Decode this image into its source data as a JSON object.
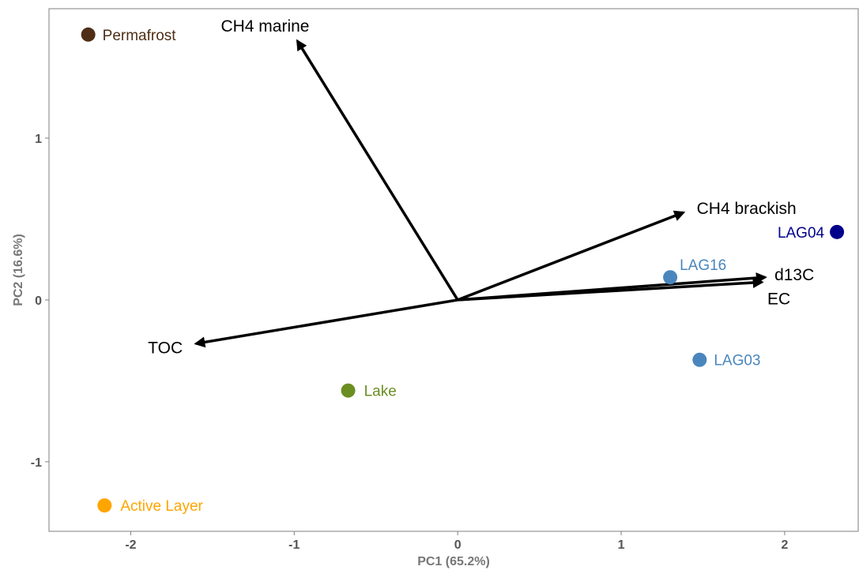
{
  "chart_data": {
    "type": "scatter",
    "title": "",
    "xlabel": "PC1 (65.2%)",
    "ylabel": "PC2 (16.6%)",
    "xlim": [
      -2.5,
      2.45
    ],
    "ylim": [
      -1.43,
      1.8
    ],
    "xticks": [
      -2,
      -1,
      0,
      1,
      2
    ],
    "yticks": [
      -1,
      0,
      1
    ],
    "xtick_labels": [
      "-2",
      "-1",
      "0",
      "1",
      "2"
    ],
    "ytick_labels": [
      "-1",
      "0",
      "1"
    ],
    "grid": false,
    "points": [
      {
        "label": "Permafrost",
        "x": -2.26,
        "y": 1.64,
        "color": "#4E2E16"
      },
      {
        "label": "LAG04",
        "x": 2.32,
        "y": 0.42,
        "color": "#00008B"
      },
      {
        "label": "LAG16",
        "x": 1.3,
        "y": 0.14,
        "color": "#4A86BD"
      },
      {
        "label": "LAG03",
        "x": 1.48,
        "y": -0.37,
        "color": "#4A86BD"
      },
      {
        "label": "Lake",
        "x": -0.67,
        "y": -0.56,
        "color": "#6B8E23"
      },
      {
        "label": "Active Layer",
        "x": -2.16,
        "y": -1.27,
        "color": "#FFA500"
      }
    ],
    "vectors": [
      {
        "label": "CH4 marine",
        "x": -0.98,
        "y": 1.6
      },
      {
        "label": "CH4 brackish",
        "x": 1.38,
        "y": 0.54
      },
      {
        "label": "d13C",
        "x": 1.88,
        "y": 0.14
      },
      {
        "label": "EC",
        "x": 1.86,
        "y": 0.11
      },
      {
        "label": "TOC",
        "x": -1.6,
        "y": -0.27
      }
    ]
  }
}
